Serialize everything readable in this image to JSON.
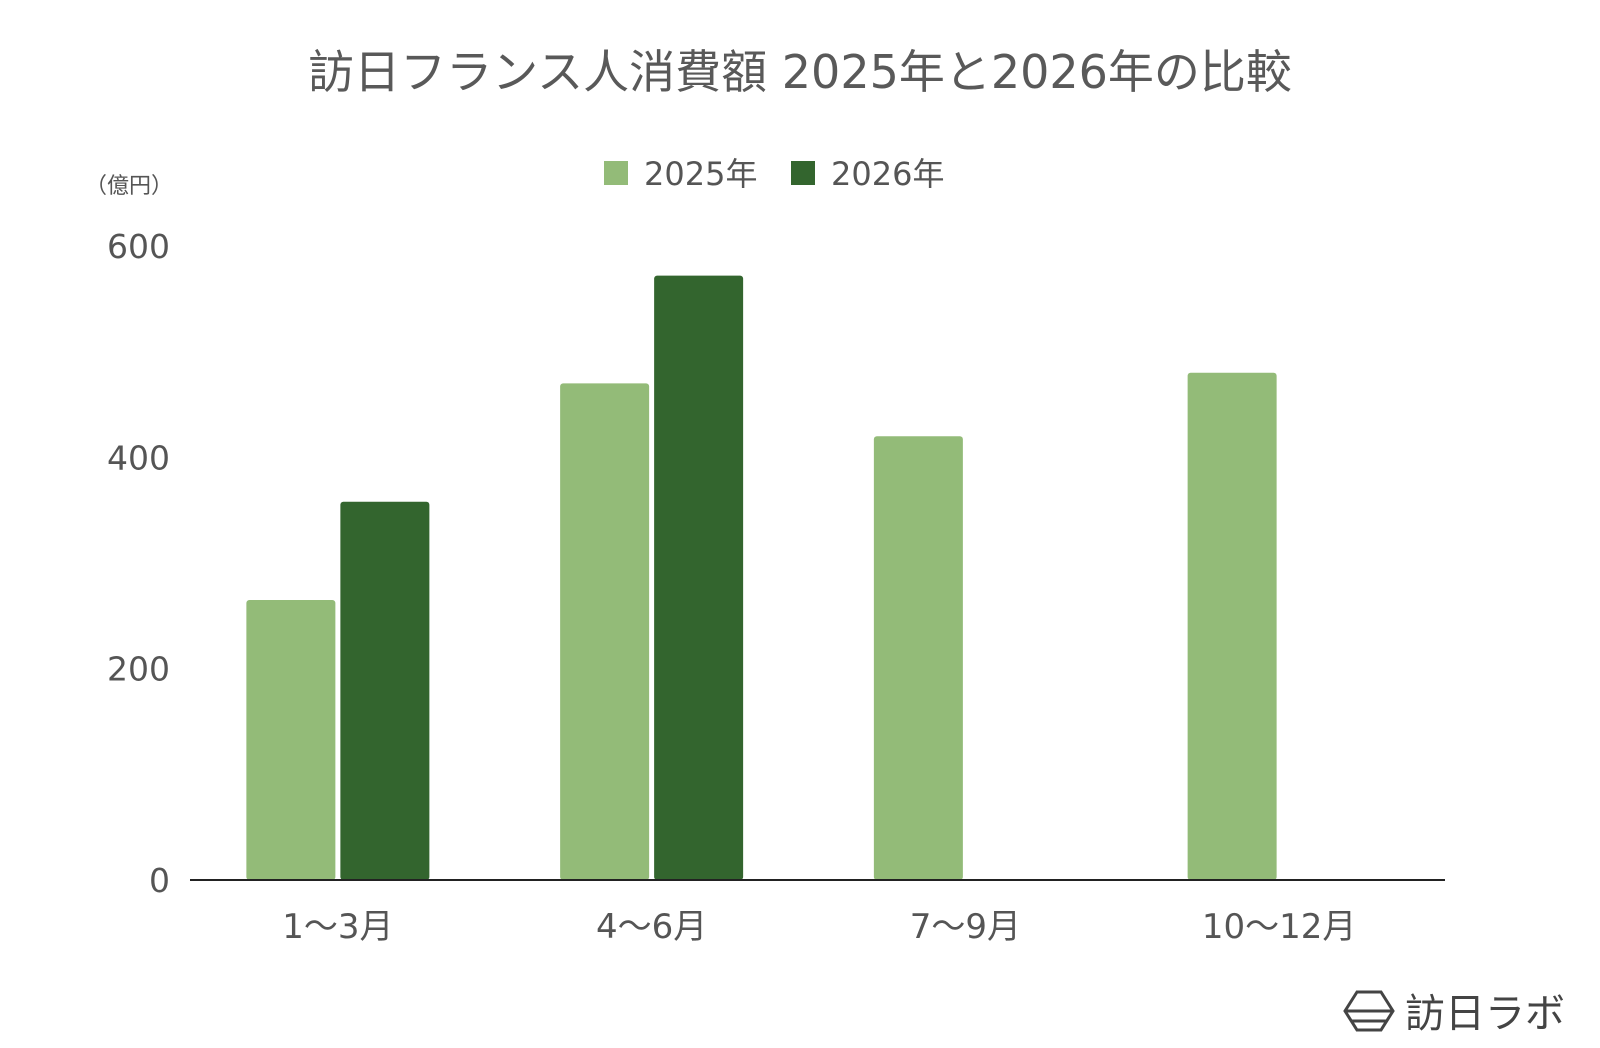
{
  "chart_data": {
    "type": "bar",
    "title": "訪日フランス人消費額 2025年と2026年の比較",
    "ylabel": "（億円）",
    "xlabel": "",
    "categories": [
      "1〜3月",
      "4〜6月",
      "7〜9月",
      "10〜12月"
    ],
    "series": [
      {
        "name": "2025年",
        "color": "#93bb78",
        "values": [
          265,
          470,
          420,
          480
        ]
      },
      {
        "name": "2026年",
        "color": "#33652e",
        "values": [
          358,
          572,
          null,
          null
        ]
      }
    ],
    "ylim": [
      0,
      600
    ],
    "yticks": [
      0,
      200,
      400,
      600
    ],
    "grid": false,
    "legend": "top-center"
  },
  "logo": {
    "text": "訪日ラボ",
    "icon": "hexagon-logo-icon"
  }
}
